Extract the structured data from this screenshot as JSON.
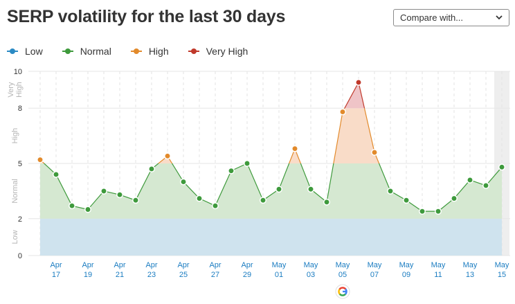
{
  "header": {
    "title": "SERP volatility for the last 30 days",
    "compare_label": "Compare with..."
  },
  "legend": [
    {
      "label": "Low",
      "color": "#2b8ac4"
    },
    {
      "label": "Normal",
      "color": "#3e9a3c"
    },
    {
      "label": "High",
      "color": "#e28a2b"
    },
    {
      "label": "Very High",
      "color": "#c0392b"
    }
  ],
  "colors": {
    "low_fill": "#cfe3ee",
    "normal_fill": "#d5e8d1",
    "high_fill": "#f9dcc8",
    "very_high_fill": "#efc4c7",
    "tick_label": "#1a7cc1"
  },
  "google_icon": "google-update-icon",
  "chart_data": {
    "type": "line",
    "ylim": [
      0,
      10
    ],
    "yticks": [
      0,
      2,
      5,
      8,
      10
    ],
    "bands": [
      {
        "label": "Low",
        "from": 0,
        "to": 2
      },
      {
        "label": "Normal",
        "from": 2,
        "to": 5
      },
      {
        "label": "High",
        "from": 5,
        "to": 8
      },
      {
        "label": "Very High",
        "from": 8,
        "to": 10
      }
    ],
    "x_ticks": [
      {
        "month": "Apr",
        "day": "17"
      },
      {
        "month": "Apr",
        "day": "19"
      },
      {
        "month": "Apr",
        "day": "21"
      },
      {
        "month": "Apr",
        "day": "23"
      },
      {
        "month": "Apr",
        "day": "25"
      },
      {
        "month": "Apr",
        "day": "27"
      },
      {
        "month": "Apr",
        "day": "29"
      },
      {
        "month": "May",
        "day": "01"
      },
      {
        "month": "May",
        "day": "03"
      },
      {
        "month": "May",
        "day": "05"
      },
      {
        "month": "May",
        "day": "07"
      },
      {
        "month": "May",
        "day": "09"
      },
      {
        "month": "May",
        "day": "11"
      },
      {
        "month": "May",
        "day": "13"
      },
      {
        "month": "May",
        "day": "15"
      }
    ],
    "x": [
      "Apr 16",
      "Apr 17",
      "Apr 18",
      "Apr 19",
      "Apr 20",
      "Apr 21",
      "Apr 22",
      "Apr 23",
      "Apr 24",
      "Apr 25",
      "Apr 26",
      "Apr 27",
      "Apr 28",
      "Apr 29",
      "Apr 30",
      "May 01",
      "May 02",
      "May 03",
      "May 04",
      "May 05",
      "May 06",
      "May 07",
      "May 08",
      "May 09",
      "May 10",
      "May 11",
      "May 12",
      "May 13",
      "May 14",
      "May 15"
    ],
    "values": [
      5.2,
      4.4,
      2.7,
      2.5,
      3.5,
      3.3,
      3.0,
      4.7,
      5.4,
      4.0,
      3.1,
      2.7,
      4.6,
      5.0,
      3.0,
      3.6,
      5.8,
      3.6,
      2.9,
      7.8,
      9.4,
      5.6,
      3.5,
      3.0,
      2.4,
      2.4,
      3.1,
      4.1,
      3.8,
      4.8
    ],
    "google_update_date": "May 05"
  }
}
